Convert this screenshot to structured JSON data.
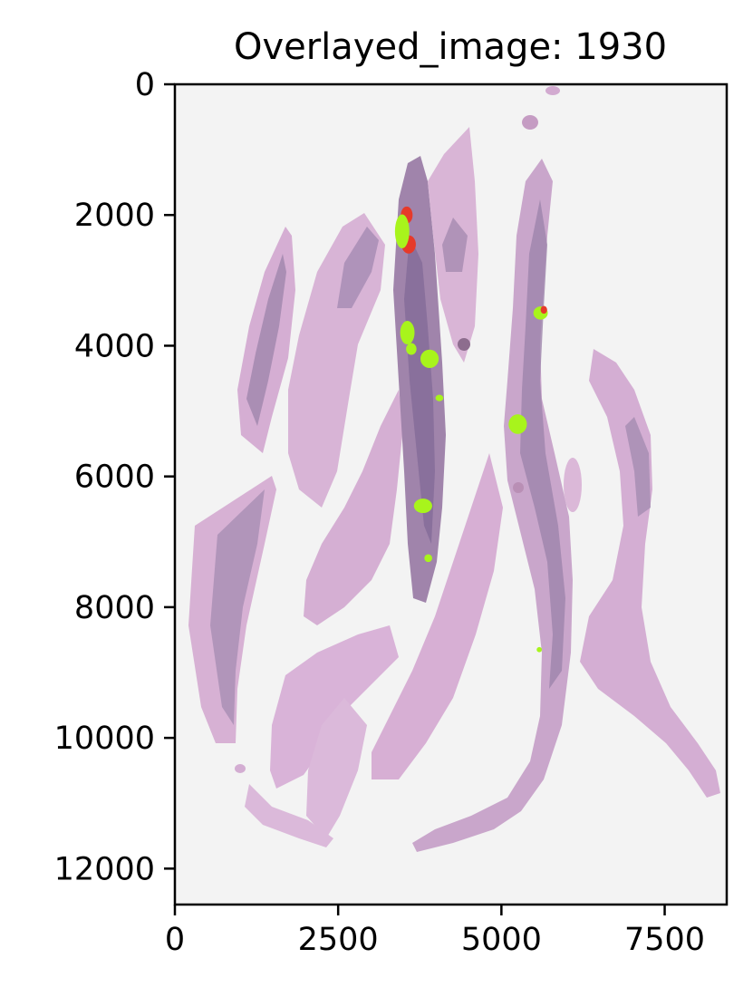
{
  "chart_data": {
    "type": "image",
    "title": "Overlayed_image: 1930",
    "xlim": [
      0,
      8450
    ],
    "ylim": [
      12550,
      0
    ],
    "xticks": [
      0,
      2500,
      5000,
      7500
    ],
    "yticks": [
      0,
      2000,
      4000,
      6000,
      8000,
      10000,
      12000
    ],
    "xtick_labels": [
      "0",
      "2500",
      "5000",
      "7500"
    ],
    "ytick_labels": [
      "0",
      "2000",
      "4000",
      "6000",
      "8000",
      "10000",
      "12000"
    ],
    "grid": false,
    "background_color": "#f3f3f3",
    "tissue_colors": {
      "stroma": "#d7b1d4",
      "epithelium": "#9a7fa8",
      "dark": "#7b6790"
    },
    "overlay_colors": {
      "green": "#a8f41c",
      "red": "#e63a2a"
    },
    "overlay_regions": [
      {
        "color": "red",
        "x": 3550,
        "y": 2000,
        "rx": 90,
        "ry": 130
      },
      {
        "color": "red",
        "x": 3580,
        "y": 2450,
        "rx": 110,
        "ry": 140
      },
      {
        "color": "green",
        "x": 3480,
        "y": 2250,
        "rx": 110,
        "ry": 260
      },
      {
        "color": "green",
        "x": 3560,
        "y": 3800,
        "rx": 110,
        "ry": 180
      },
      {
        "color": "green",
        "x": 3900,
        "y": 4200,
        "rx": 140,
        "ry": 140
      },
      {
        "color": "green",
        "x": 3620,
        "y": 4050,
        "rx": 80,
        "ry": 90
      },
      {
        "color": "green",
        "x": 3800,
        "y": 6450,
        "rx": 140,
        "ry": 110
      },
      {
        "color": "green",
        "x": 3880,
        "y": 7250,
        "rx": 60,
        "ry": 60
      },
      {
        "color": "green",
        "x": 5250,
        "y": 5200,
        "rx": 140,
        "ry": 150
      },
      {
        "color": "green",
        "x": 5600,
        "y": 3500,
        "rx": 110,
        "ry": 100
      },
      {
        "color": "red",
        "x": 5650,
        "y": 3450,
        "rx": 50,
        "ry": 60
      },
      {
        "color": "green",
        "x": 4050,
        "y": 4800,
        "rx": 60,
        "ry": 50
      },
      {
        "color": "green",
        "x": 5580,
        "y": 8650,
        "rx": 40,
        "ry": 40
      }
    ]
  }
}
